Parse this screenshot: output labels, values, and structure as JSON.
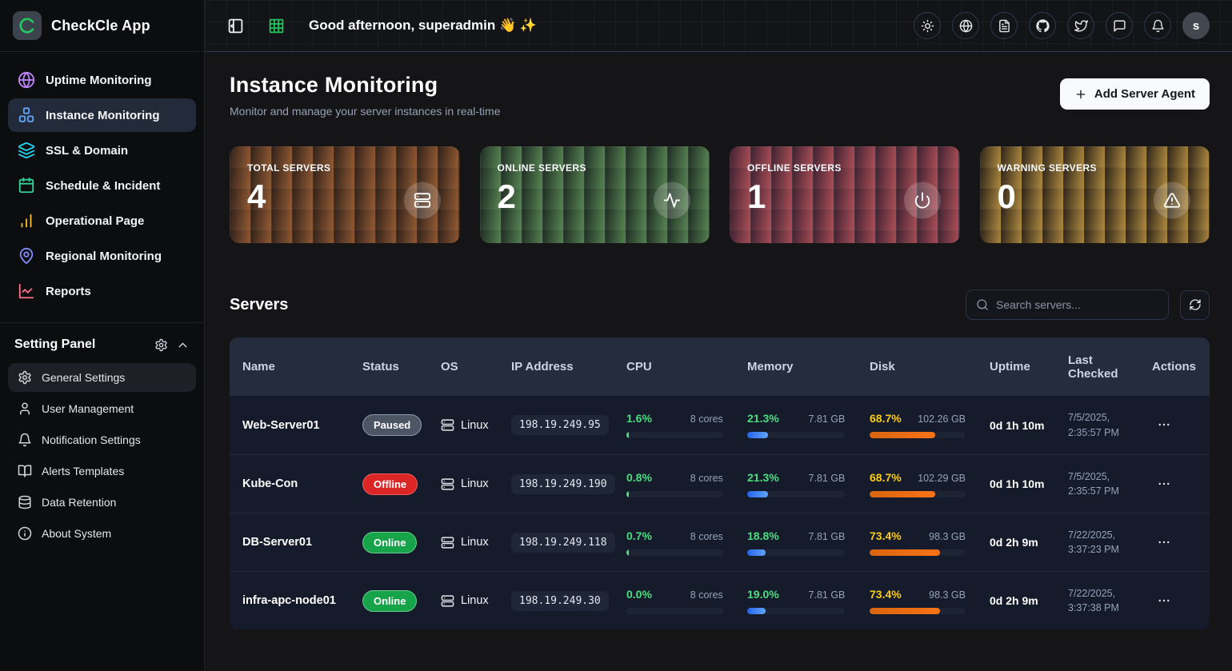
{
  "app": {
    "title": "CheckCle App",
    "logo_icon": "checkcle-logo-icon"
  },
  "sidebar": {
    "nav": [
      {
        "label": "Uptime Monitoring",
        "icon": "globe-icon",
        "color": "#c084fc",
        "active": false
      },
      {
        "label": "Instance Monitoring",
        "icon": "cubes-icon",
        "color": "#60a5fa",
        "active": true
      },
      {
        "label": "SSL & Domain",
        "icon": "layers-icon",
        "color": "#22d3ee",
        "active": false
      },
      {
        "label": "Schedule & Incident",
        "icon": "calendar-icon",
        "color": "#34d399",
        "active": false
      },
      {
        "label": "Operational Page",
        "icon": "bar-chart-icon",
        "color": "#fbbf24",
        "active": false
      },
      {
        "label": "Regional Monitoring",
        "icon": "map-pin-icon",
        "color": "#818cf8",
        "active": false
      },
      {
        "label": "Reports",
        "icon": "line-chart-icon",
        "color": "#fb7185",
        "active": false
      }
    ],
    "settings_header": "Setting Panel",
    "settings_header_icons": [
      "gear-icon",
      "chevron-up-icon"
    ],
    "settings": [
      {
        "label": "General Settings",
        "icon": "gear-icon",
        "active": true
      },
      {
        "label": "User Management",
        "icon": "user-icon",
        "active": false
      },
      {
        "label": "Notification Settings",
        "icon": "bell-icon",
        "active": false
      },
      {
        "label": "Alerts Templates",
        "icon": "book-icon",
        "active": false
      },
      {
        "label": "Data Retention",
        "icon": "database-icon",
        "active": false
      },
      {
        "label": "About System",
        "icon": "info-icon",
        "active": false
      }
    ]
  },
  "header": {
    "greeting": "Good afternoon, superadmin 👋 ✨",
    "left_buttons": [
      {
        "name": "sidebar-collapse-button",
        "icon": "panel-left-icon",
        "color": "#f3f4f6"
      },
      {
        "name": "grid-view-button",
        "icon": "grid-icon",
        "color": "#22c55e"
      }
    ],
    "right_buttons": [
      {
        "name": "theme-toggle-button",
        "icon": "sun-icon"
      },
      {
        "name": "language-button",
        "icon": "globe-icon"
      },
      {
        "name": "docs-button",
        "icon": "file-text-icon"
      },
      {
        "name": "github-button",
        "icon": "github-icon"
      },
      {
        "name": "twitter-button",
        "icon": "twitter-icon"
      },
      {
        "name": "feedback-button",
        "icon": "message-icon"
      },
      {
        "name": "notifications-button",
        "icon": "bell-icon"
      }
    ],
    "avatar_label": "s"
  },
  "page": {
    "title": "Instance Monitoring",
    "subtitle": "Monitor and manage your server instances in real-time",
    "add_button": "Add Server Agent"
  },
  "stats": [
    {
      "label": "TOTAL SERVERS",
      "value": "4",
      "icon": "server-icon",
      "gradient_from": "#2e2019",
      "gradient_to": "#8a5632"
    },
    {
      "label": "ONLINE SERVERS",
      "value": "2",
      "icon": "activity-icon",
      "gradient_from": "#1e2b22",
      "gradient_to": "#527d4f"
    },
    {
      "label": "OFFLINE SERVERS",
      "value": "1",
      "icon": "power-icon",
      "gradient_from": "#3c2130",
      "gradient_to": "#a14b53"
    },
    {
      "label": "WARNING SERVERS",
      "value": "0",
      "icon": "warning-icon",
      "gradient_from": "#2b2319",
      "gradient_to": "#a3803c"
    }
  ],
  "servers_section": {
    "heading": "Servers",
    "search_placeholder": "Search servers...",
    "columns": [
      "Name",
      "Status",
      "OS",
      "IP Address",
      "CPU",
      "Memory",
      "Disk",
      "Uptime",
      "Last Checked",
      "Actions"
    ]
  },
  "status_colors": {
    "online": "#16a34a",
    "offline": "#dc2626",
    "paused": "#4b5563"
  },
  "table": {
    "rows": [
      {
        "name": "Web-Server01",
        "status": "Paused",
        "os": "Linux",
        "ip": "198.19.249.95",
        "cpu": {
          "pct": "1.6%",
          "sub": "8 cores",
          "bar": 1.6
        },
        "memory": {
          "pct": "21.3%",
          "sub": "7.81 GB",
          "bar": 21.3
        },
        "disk": {
          "pct": "68.7%",
          "sub": "102.26 GB",
          "bar": 68.7
        },
        "uptime": "0d 1h 10m",
        "checked_date": "7/5/2025,",
        "checked_time": "2:35:57 PM"
      },
      {
        "name": "Kube-Con",
        "status": "Offline",
        "os": "Linux",
        "ip": "198.19.249.190",
        "cpu": {
          "pct": "0.8%",
          "sub": "8 cores",
          "bar": 0.8
        },
        "memory": {
          "pct": "21.3%",
          "sub": "7.81 GB",
          "bar": 21.3
        },
        "disk": {
          "pct": "68.7%",
          "sub": "102.29 GB",
          "bar": 68.7
        },
        "uptime": "0d 1h 10m",
        "checked_date": "7/5/2025,",
        "checked_time": "2:35:57 PM"
      },
      {
        "name": "DB-Server01",
        "status": "Online",
        "os": "Linux",
        "ip": "198.19.249.118",
        "cpu": {
          "pct": "0.7%",
          "sub": "8 cores",
          "bar": 0.7
        },
        "memory": {
          "pct": "18.8%",
          "sub": "7.81 GB",
          "bar": 18.8
        },
        "disk": {
          "pct": "73.4%",
          "sub": "98.3 GB",
          "bar": 73.4
        },
        "uptime": "0d 2h 9m",
        "checked_date": "7/22/2025,",
        "checked_time": "3:37:23 PM"
      },
      {
        "name": "infra-apc-node01",
        "status": "Online",
        "os": "Linux",
        "ip": "198.19.249.30",
        "cpu": {
          "pct": "0.0%",
          "sub": "8 cores",
          "bar": 0.0
        },
        "memory": {
          "pct": "19.0%",
          "sub": "7.81 GB",
          "bar": 19.0
        },
        "disk": {
          "pct": "73.4%",
          "sub": "98.3 GB",
          "bar": 73.4
        },
        "uptime": "0d 2h 9m",
        "checked_date": "7/22/2025,",
        "checked_time": "3:37:38 PM"
      }
    ]
  }
}
